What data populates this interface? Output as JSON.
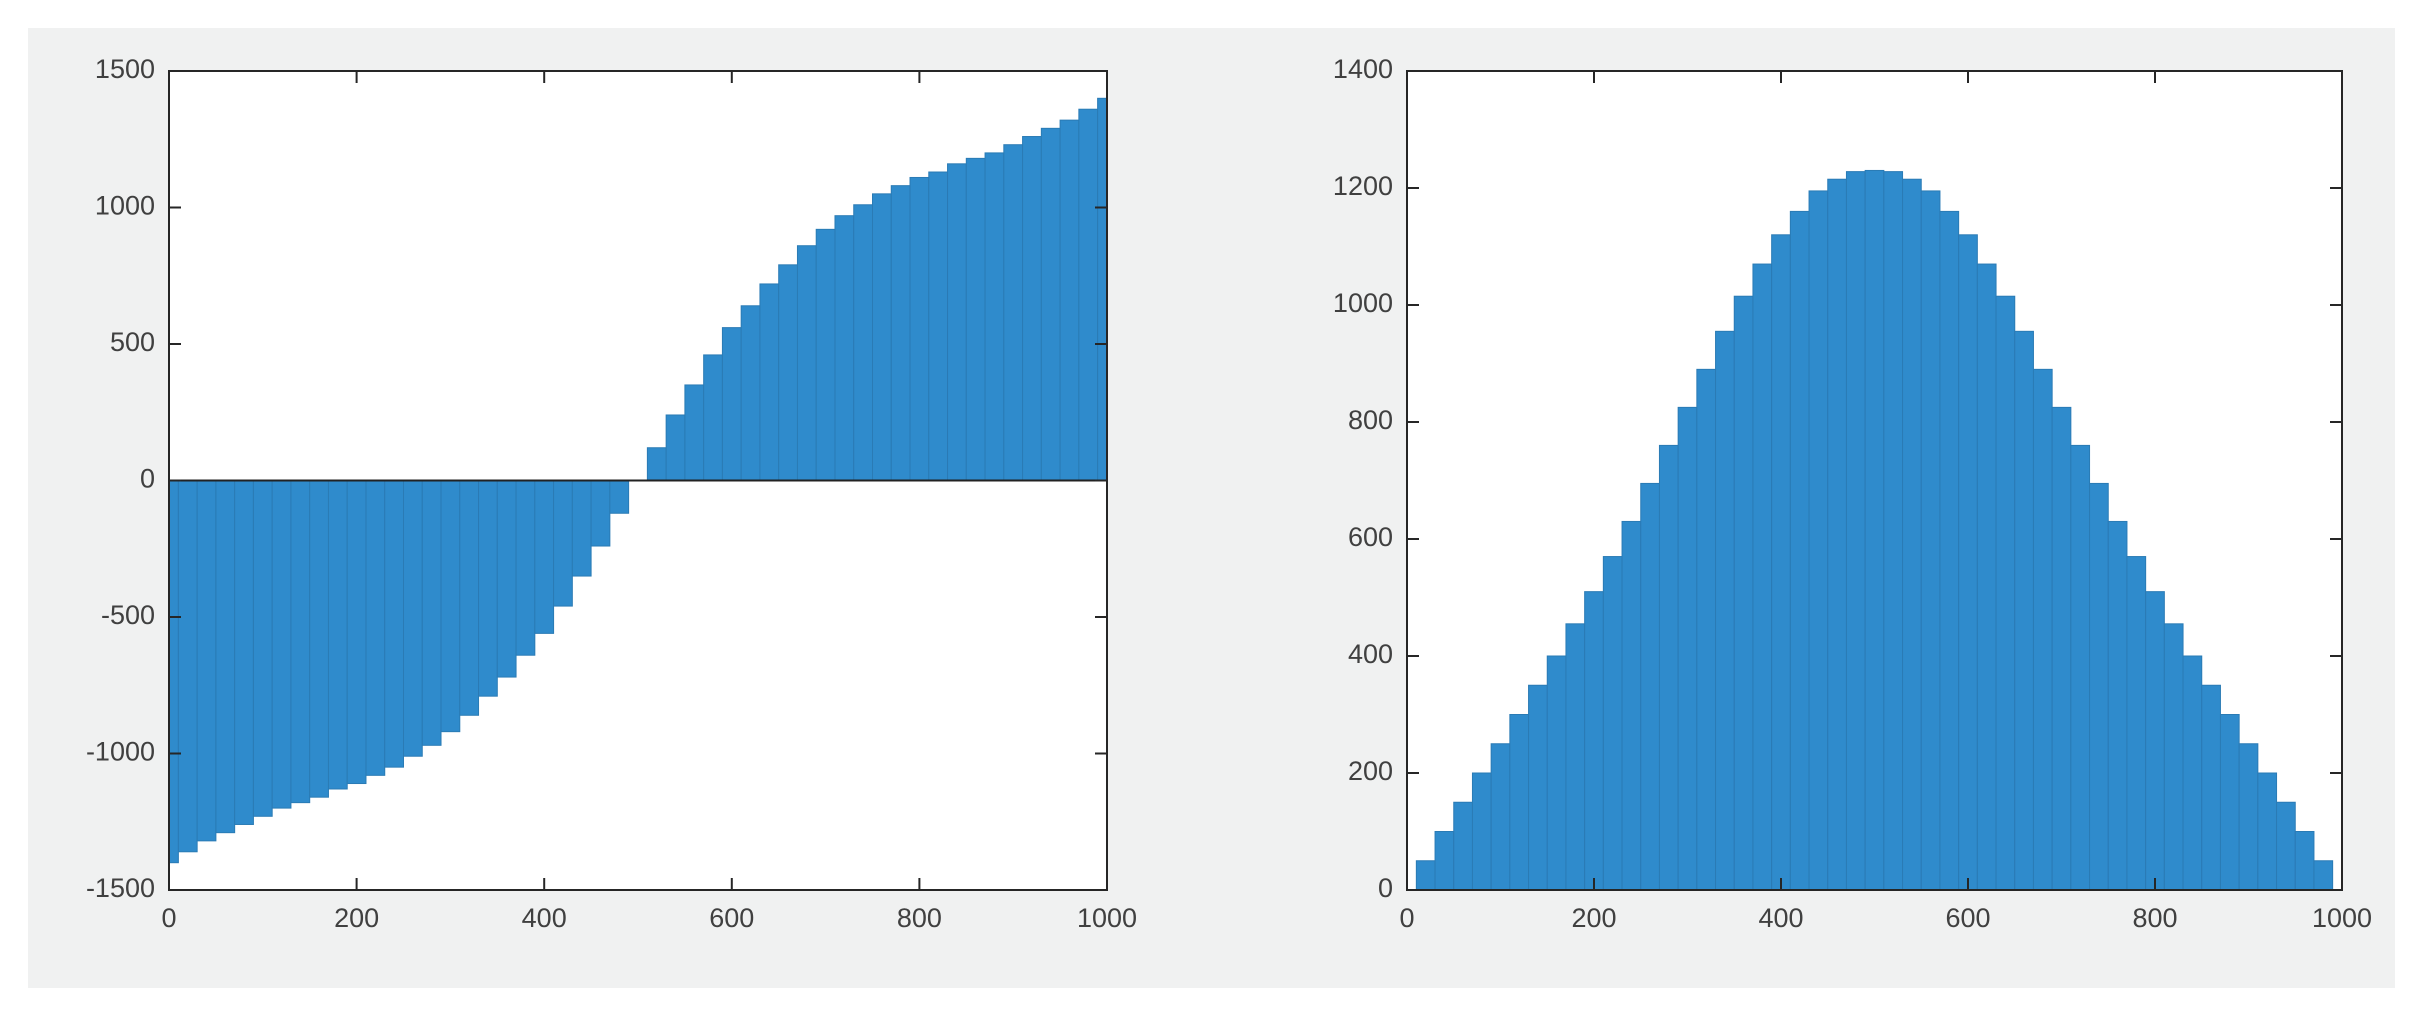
{
  "chart_data": [
    {
      "type": "bar",
      "x": [
        0,
        20,
        40,
        60,
        80,
        100,
        120,
        140,
        160,
        180,
        200,
        220,
        240,
        260,
        280,
        300,
        320,
        340,
        360,
        380,
        400,
        420,
        440,
        460,
        480,
        500,
        520,
        540,
        560,
        580,
        600,
        620,
        640,
        660,
        680,
        700,
        720,
        740,
        760,
        780,
        800,
        820,
        840,
        860,
        880,
        900,
        920,
        940,
        960,
        980,
        1000
      ],
      "values": [
        -1400,
        -1360,
        -1320,
        -1290,
        -1260,
        -1230,
        -1200,
        -1180,
        -1160,
        -1130,
        -1110,
        -1080,
        -1050,
        -1010,
        -970,
        -920,
        -860,
        -790,
        -720,
        -640,
        -560,
        -460,
        -350,
        -240,
        -120,
        0,
        120,
        240,
        350,
        460,
        560,
        640,
        720,
        790,
        860,
        920,
        970,
        1010,
        1050,
        1080,
        1110,
        1130,
        1160,
        1180,
        1200,
        1230,
        1260,
        1290,
        1320,
        1360,
        1400
      ],
      "color": "#2f8bcc",
      "xlim": [
        0,
        1000
      ],
      "ylim": [
        -1500,
        1500
      ],
      "xticks": [
        0,
        200,
        400,
        600,
        800,
        1000
      ],
      "yticks": [
        -1500,
        -1000,
        -500,
        0,
        500,
        1000,
        1500
      ]
    },
    {
      "type": "bar",
      "x": [
        0,
        20,
        40,
        60,
        80,
        100,
        120,
        140,
        160,
        180,
        200,
        220,
        240,
        260,
        280,
        300,
        320,
        340,
        360,
        380,
        400,
        420,
        440,
        460,
        480,
        500,
        520,
        540,
        560,
        580,
        600,
        620,
        640,
        660,
        680,
        700,
        720,
        740,
        760,
        780,
        800,
        820,
        840,
        860,
        880,
        900,
        920,
        940,
        960,
        980,
        1000
      ],
      "values": [
        0,
        50,
        100,
        150,
        200,
        250,
        300,
        350,
        400,
        455,
        510,
        570,
        630,
        695,
        760,
        825,
        890,
        955,
        1015,
        1070,
        1120,
        1160,
        1195,
        1215,
        1228,
        1230,
        1228,
        1215,
        1195,
        1160,
        1120,
        1070,
        1015,
        955,
        890,
        825,
        760,
        695,
        630,
        570,
        510,
        455,
        400,
        350,
        300,
        250,
        200,
        150,
        100,
        50,
        0
      ],
      "color": "#2f8bcc",
      "xlim": [
        0,
        1000
      ],
      "ylim": [
        0,
        1400
      ],
      "xticks": [
        0,
        200,
        400,
        600,
        800,
        1000
      ],
      "yticks": [
        0,
        200,
        400,
        600,
        800,
        1000,
        1200,
        1400
      ]
    }
  ]
}
